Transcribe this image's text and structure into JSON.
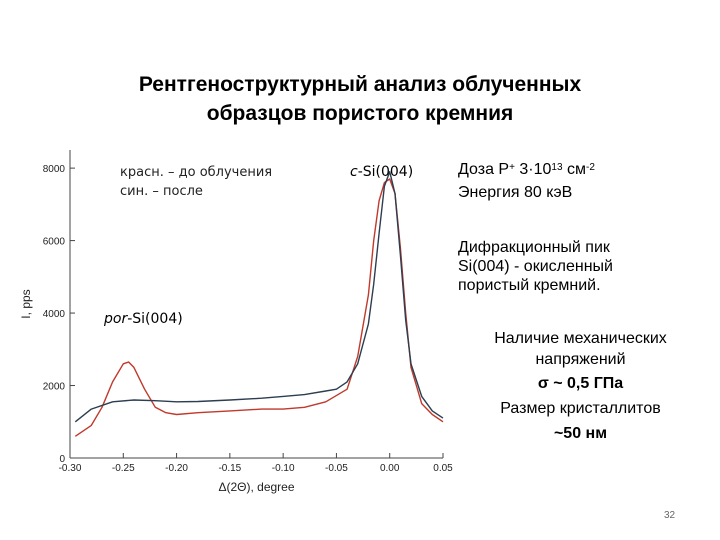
{
  "slide": {
    "title_line1": "Рентгеноструктурный анализ облученных",
    "title_line2": "образцов пористого кремния",
    "legend_red": "красн. – до облучения",
    "legend_blue": "син. – после",
    "peak_main_prefix": "c",
    "peak_main_suffix": "-Si(004)",
    "peak_por_prefix": "por",
    "peak_por_suffix": "-Si(004)",
    "dose_prefix": "Доза P",
    "dose_plus": "+",
    "dose_value": " 3·10",
    "dose_exp": "13",
    "dose_unit": " см",
    "dose_unit_exp": "-2",
    "energy": "Энергия 80 кэВ",
    "diffraction_1": "Дифракционный пик",
    "diffraction_2": "Si(004)  - окисленный",
    "diffraction_3": "пористый кремний.",
    "stress_1": "Наличие механических",
    "stress_2": "напряжений",
    "stress_3": "σ ~ 0,5 ГПа",
    "crystal_1": "Размер кристаллитов",
    "crystal_2": "~50 нм",
    "page_number": "32"
  },
  "chart_data": {
    "type": "line",
    "xlabel": "Δ(2Θ), degree",
    "ylabel": "I, pps",
    "xlim": [
      -0.3,
      0.05
    ],
    "ylim": [
      0,
      8500
    ],
    "x_ticks": [
      "-0.30",
      "-0.25",
      "-0.20",
      "-0.15",
      "-0.10",
      "-0.05",
      "0.00",
      "0.05"
    ],
    "y_ticks": [
      "0",
      "2000",
      "4000",
      "6000",
      "8000"
    ],
    "series": [
      {
        "color": "#c0392b",
        "x": [
          -0.295,
          -0.28,
          -0.27,
          -0.26,
          -0.25,
          -0.245,
          -0.24,
          -0.23,
          -0.22,
          -0.21,
          -0.2,
          -0.18,
          -0.15,
          -0.12,
          -0.1,
          -0.08,
          -0.06,
          -0.04,
          -0.03,
          -0.02,
          -0.015,
          -0.01,
          -0.005,
          0.0,
          0.005,
          0.01,
          0.015,
          0.02,
          0.03,
          0.04,
          0.05
        ],
        "y": [
          600,
          900,
          1400,
          2100,
          2600,
          2650,
          2500,
          1900,
          1400,
          1250,
          1200,
          1250,
          1300,
          1350,
          1350,
          1400,
          1550,
          1900,
          2800,
          4500,
          6000,
          7100,
          7600,
          7700,
          7300,
          5800,
          4000,
          2500,
          1500,
          1200,
          1000
        ]
      },
      {
        "color": "#2c3e50",
        "x": [
          -0.295,
          -0.28,
          -0.26,
          -0.24,
          -0.22,
          -0.2,
          -0.18,
          -0.15,
          -0.12,
          -0.1,
          -0.08,
          -0.06,
          -0.05,
          -0.04,
          -0.03,
          -0.02,
          -0.015,
          -0.01,
          -0.005,
          0.0,
          0.005,
          0.01,
          0.015,
          0.02,
          0.03,
          0.04,
          0.05
        ],
        "y": [
          1000,
          1350,
          1550,
          1600,
          1580,
          1550,
          1560,
          1600,
          1650,
          1700,
          1750,
          1850,
          1900,
          2100,
          2600,
          3700,
          4800,
          6200,
          7500,
          7900,
          7300,
          5600,
          3800,
          2600,
          1700,
          1300,
          1100
        ]
      }
    ]
  }
}
